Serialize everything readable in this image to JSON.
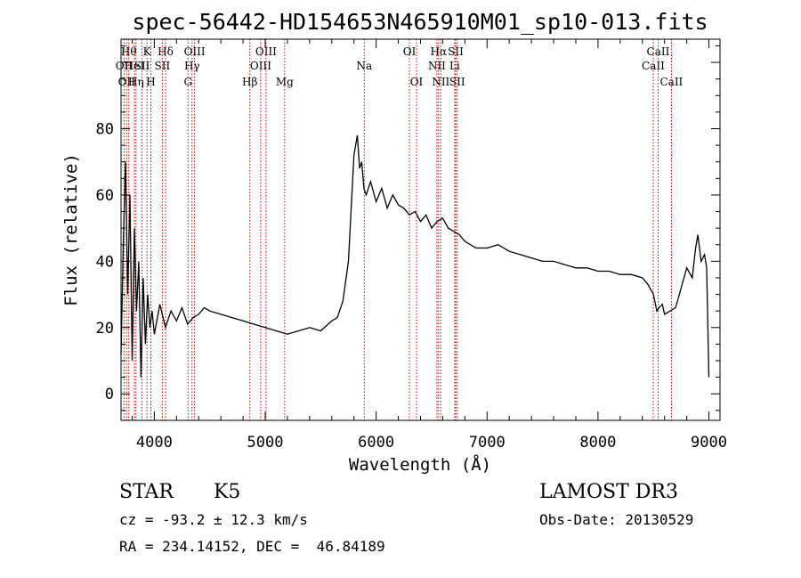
{
  "chart_data": {
    "type": "line",
    "title": "spec-56442-HD154653N465910M01_sp10-013.fits",
    "xlabel": "Wavelength (Å)",
    "ylabel": "Flux (relative)",
    "xlim": [
      3700,
      9100
    ],
    "ylim": [
      -8,
      107
    ],
    "xticks": [
      4000,
      5000,
      6000,
      7000,
      8000,
      9000
    ],
    "yticks": [
      0,
      20,
      40,
      60,
      80
    ],
    "grid": false,
    "colors": {
      "spectrum": "#000000",
      "line_markers": "#cc0000"
    },
    "series": [
      {
        "x": [
          3700,
          3720,
          3740,
          3760,
          3780,
          3800,
          3820,
          3840,
          3860,
          3880,
          3900,
          3920,
          3940,
          3960,
          3980,
          4000,
          4050,
          4100,
          4150,
          4200,
          4250,
          4300,
          4350,
          4400,
          4450,
          4500,
          4600,
          4700,
          4800,
          4900,
          5000,
          5100,
          5200,
          5300,
          5400,
          5500,
          5600,
          5650,
          5700,
          5750,
          5800,
          5830,
          5850,
          5870,
          5890,
          5910,
          5950,
          6000,
          6050,
          6100,
          6150,
          6200,
          6250,
          6300,
          6350,
          6400,
          6450,
          6500,
          6550,
          6600,
          6650,
          6700,
          6750,
          6800,
          6850,
          6900,
          7000,
          7100,
          7200,
          7300,
          7400,
          7500,
          7600,
          7700,
          7800,
          7900,
          8000,
          8100,
          8200,
          8300,
          8400,
          8450,
          8500,
          8530,
          8550,
          8580,
          8600,
          8650,
          8700,
          8750,
          8800,
          8850,
          8880,
          8900,
          8930,
          8960,
          8980,
          9000
        ],
        "y": [
          12,
          45,
          70,
          30,
          60,
          10,
          50,
          25,
          40,
          5,
          35,
          15,
          30,
          20,
          25,
          18,
          27,
          20,
          25,
          22,
          26,
          21,
          23,
          24,
          26,
          25,
          24,
          23,
          22,
          21,
          20,
          19,
          18,
          19,
          20,
          19,
          22,
          23,
          28,
          40,
          72,
          78,
          68,
          70,
          62,
          60,
          64,
          58,
          62,
          56,
          60,
          57,
          56,
          54,
          55,
          52,
          54,
          50,
          52,
          53,
          50,
          49,
          48,
          46,
          45,
          44,
          44,
          45,
          43,
          42,
          41,
          40,
          40,
          39,
          38,
          38,
          37,
          37,
          36,
          36,
          35,
          33,
          30,
          25,
          26,
          27,
          24,
          25,
          26,
          32,
          38,
          35,
          44,
          48,
          40,
          42,
          38,
          5
        ]
      }
    ],
    "lines": [
      {
        "wl": 3727,
        "label": "OII",
        "row": 2
      },
      {
        "wl": 3750,
        "label": "OII",
        "row": 3
      },
      {
        "wl": 3770,
        "label": "Hθ",
        "row": 1
      },
      {
        "wl": 3820,
        "label": "HeI",
        "row": 2
      },
      {
        "wl": 3835,
        "label": "Hη",
        "row": 3
      },
      {
        "wl": 3889,
        "label": "SII",
        "row": 2
      },
      {
        "wl": 3934,
        "label": "K",
        "row": 1
      },
      {
        "wl": 3969,
        "label": "H",
        "row": 3
      },
      {
        "wl": 4101,
        "label": "Hδ",
        "row": 1
      },
      {
        "wl": 4072,
        "label": "SII",
        "row": 2
      },
      {
        "wl": 4304,
        "label": "G",
        "row": 3
      },
      {
        "wl": 4340,
        "label": "Hγ",
        "row": 2
      },
      {
        "wl": 4363,
        "label": "OIII",
        "row": 1
      },
      {
        "wl": 4861,
        "label": "Hβ",
        "row": 3
      },
      {
        "wl": 4959,
        "label": "OIII",
        "row": 2
      },
      {
        "wl": 5007,
        "label": "OIII",
        "row": 1
      },
      {
        "wl": 5175,
        "label": "Mg",
        "row": 3
      },
      {
        "wl": 5893,
        "label": "Na",
        "row": 2
      },
      {
        "wl": 6300,
        "label": "OI",
        "row": 1
      },
      {
        "wl": 6364,
        "label": "OI",
        "row": 3
      },
      {
        "wl": 6548,
        "label": "NII",
        "row": 2
      },
      {
        "wl": 6563,
        "label": "Hα",
        "row": 1
      },
      {
        "wl": 6583,
        "label": "NII",
        "row": 3
      },
      {
        "wl": 6708,
        "label": "Li",
        "row": 2
      },
      {
        "wl": 6717,
        "label": "SII",
        "row": 1
      },
      {
        "wl": 6731,
        "label": "SII",
        "row": 3
      },
      {
        "wl": 8498,
        "label": "CaII",
        "row": 2
      },
      {
        "wl": 8542,
        "label": "CaII",
        "row": 1
      },
      {
        "wl": 8662,
        "label": "CaII",
        "row": 3
      }
    ]
  },
  "info": {
    "class": "STAR",
    "subclass": "K5",
    "survey": "LAMOST DR3",
    "cz": "cz = -93.2 ± 12.3 km/s",
    "obsdate": "Obs-Date: 20130529",
    "radec": "RA = 234.14152, DEC =  46.84189"
  }
}
